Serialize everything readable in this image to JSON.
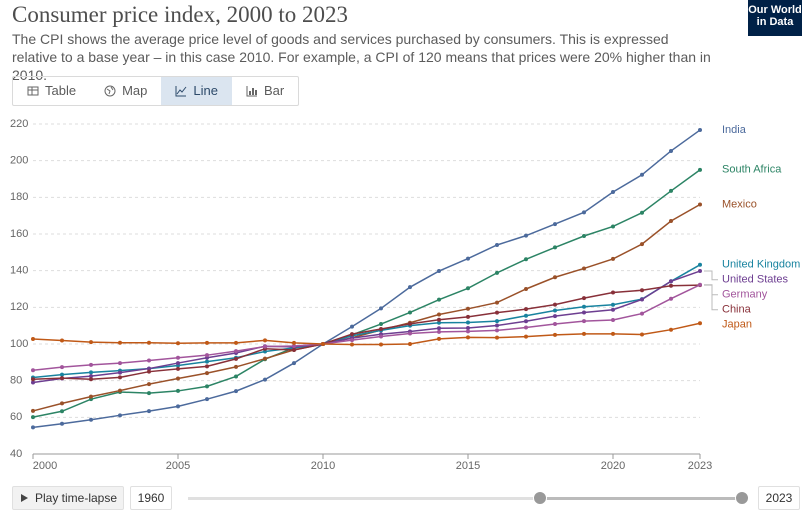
{
  "header": {
    "title": "Consumer price index, 2000 to 2023",
    "subtitle": "The CPI shows the average price level of goods and services purchased by consumers. This is expressed relative to a base year – in this case 2010. For example, a CPI of 120 means that prices were 20% higher than in 2010.",
    "logo": [
      "Our World",
      "in Data"
    ]
  },
  "tabs": [
    "Table",
    "Map",
    "Line",
    "Bar"
  ],
  "timeline": {
    "play": "Play time-lapse",
    "start": "1960",
    "end": "2023"
  },
  "chart_data": {
    "type": "line",
    "x": [
      2000,
      2001,
      2002,
      2003,
      2004,
      2005,
      2006,
      2007,
      2008,
      2009,
      2010,
      2011,
      2012,
      2013,
      2014,
      2015,
      2016,
      2017,
      2018,
      2019,
      2020,
      2021,
      2022,
      2023
    ],
    "xlim": [
      2000,
      2023
    ],
    "xticks": [
      2000,
      2005,
      2010,
      2015,
      2020,
      2023
    ],
    "ylim": [
      40,
      220
    ],
    "yticks": [
      40,
      60,
      80,
      100,
      120,
      140,
      160,
      180,
      200,
      220
    ],
    "grid": true,
    "series": [
      {
        "name": "India",
        "color": "#4c6a9c",
        "values": [
          54.5,
          56.5,
          58.7,
          61.1,
          63.4,
          66.0,
          69.9,
          74.3,
          80.6,
          89.6,
          100,
          109.5,
          119.4,
          131.0,
          139.8,
          146.6,
          154.0,
          159.1,
          165.4,
          171.8,
          182.9,
          192.3,
          205.3,
          216.7
        ]
      },
      {
        "name": "South Africa",
        "color": "#2c8465",
        "values": [
          60.1,
          63.3,
          69.9,
          73.8,
          73.2,
          74.4,
          76.9,
          82.3,
          91.7,
          97.9,
          100,
          105.0,
          110.9,
          117.2,
          124.2,
          130.4,
          138.8,
          146.2,
          152.7,
          158.9,
          164.1,
          171.6,
          183.5,
          195.0
        ]
      },
      {
        "name": "Mexico",
        "color": "#9a5129",
        "values": [
          63.5,
          67.6,
          71.3,
          74.6,
          78.1,
          81.2,
          84.1,
          87.5,
          92.0,
          96.8,
          100,
          103.4,
          107.6,
          111.6,
          116.1,
          119.2,
          122.6,
          130.0,
          136.4,
          141.2,
          146.4,
          154.5,
          167.1,
          176.1
        ]
      },
      {
        "name": "United Kingdom",
        "color": "#18839f",
        "values": [
          81.7,
          83.3,
          84.5,
          85.5,
          86.6,
          88.3,
          90.4,
          92.5,
          95.9,
          97.9,
          100,
          104.5,
          107.4,
          110.0,
          111.6,
          111.7,
          112.5,
          115.4,
          118.3,
          120.3,
          121.4,
          124.5,
          134.2,
          143.2
        ]
      },
      {
        "name": "United States",
        "color": "#6d3e91",
        "values": [
          79.0,
          81.2,
          82.5,
          84.4,
          86.6,
          89.6,
          92.5,
          95.1,
          98.8,
          98.4,
          100,
          103.2,
          105.3,
          106.8,
          108.6,
          108.7,
          110.1,
          112.4,
          115.2,
          117.2,
          118.7,
          124.3,
          134.2,
          139.8
        ]
      },
      {
        "name": "China",
        "color": "#883039",
        "values": [
          80.8,
          81.4,
          80.8,
          81.8,
          84.9,
          86.4,
          87.8,
          91.9,
          97.4,
          96.7,
          100,
          105.4,
          108.2,
          111.0,
          113.2,
          114.8,
          117.1,
          119.0,
          121.5,
          125.0,
          128.1,
          129.3,
          131.8,
          132.1
        ]
      },
      {
        "name": "Germany",
        "color": "#a2559c",
        "values": [
          85.7,
          87.4,
          88.6,
          89.6,
          91.0,
          92.5,
          93.9,
          96.1,
          98.6,
          98.9,
          100,
          102.1,
          104.1,
          105.7,
          106.6,
          106.9,
          107.4,
          109.0,
          110.9,
          112.5,
          113.1,
          116.6,
          124.7,
          132.3
        ]
      },
      {
        "name": "Japan",
        "color": "#c05917",
        "values": [
          102.7,
          101.9,
          101.0,
          100.7,
          100.7,
          100.4,
          100.6,
          100.6,
          102.0,
          100.6,
          100,
          99.7,
          99.7,
          100.0,
          102.8,
          103.6,
          103.5,
          104.0,
          105.0,
          105.5,
          105.5,
          105.2,
          107.8,
          111.3
        ]
      }
    ]
  }
}
